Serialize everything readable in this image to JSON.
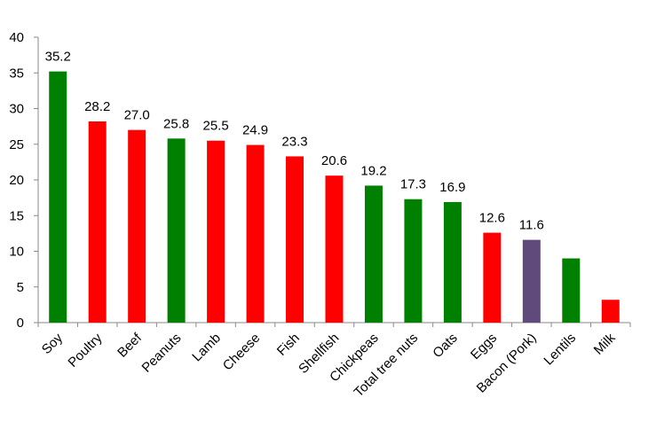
{
  "chart_data": {
    "type": "bar",
    "title": "",
    "xlabel": "",
    "ylabel": "",
    "ylim": [
      0,
      40
    ],
    "yticks": [
      0,
      5,
      10,
      15,
      20,
      25,
      30,
      35,
      40
    ],
    "grid": false,
    "categories": [
      "Soy",
      "Poultry",
      "Beef",
      "Peanuts",
      "Lamb",
      "Cheese",
      "Fish",
      "Shellfish",
      "Chickpeas",
      "Total tree nuts",
      "Oats",
      "Eggs",
      "Bacon (Pork)",
      "Lentils",
      "Milk"
    ],
    "values": [
      35.2,
      28.2,
      27.0,
      25.8,
      25.5,
      24.9,
      23.3,
      20.6,
      19.2,
      17.3,
      16.9,
      12.6,
      11.6,
      9.0,
      3.2
    ],
    "data_labels": [
      "35.2",
      "28.2",
      "27.0",
      "25.8",
      "25.5",
      "24.9",
      "23.3",
      "20.6",
      "19.2",
      "17.3",
      "16.9",
      "12.6",
      "11.6",
      "",
      ""
    ],
    "colors": [
      "#008000",
      "#ff0000",
      "#ff0000",
      "#008000",
      "#ff0000",
      "#ff0000",
      "#ff0000",
      "#ff0000",
      "#008000",
      "#008000",
      "#008000",
      "#ff0000",
      "#604a7b",
      "#008000",
      "#ff0000"
    ]
  }
}
